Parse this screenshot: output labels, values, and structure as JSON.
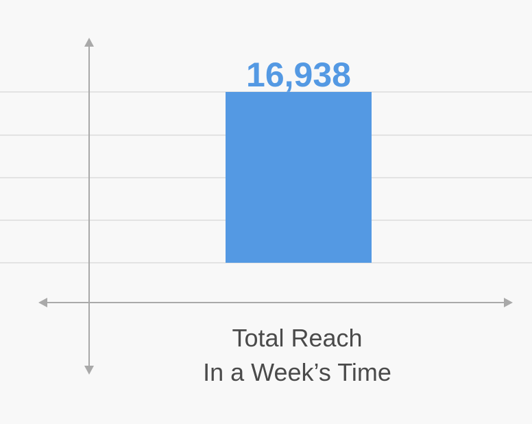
{
  "chart_data": {
    "type": "bar",
    "categories": [
      [
        "Total Reach",
        "In a Week’s Time"
      ]
    ],
    "values": [
      16938
    ],
    "value_labels": [
      "16,938"
    ],
    "color": "#5499e3"
  }
}
